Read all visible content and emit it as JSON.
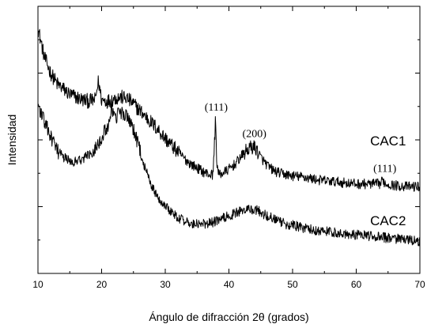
{
  "chart_data": {
    "type": "line",
    "title": "",
    "xlabel": "Ángulo de difracción 2θ (grados)",
    "ylabel": "Intensidad",
    "xlim": [
      10,
      70
    ],
    "ylim": [
      0,
      100
    ],
    "x_ticks": [
      10,
      20,
      30,
      40,
      50,
      60,
      70
    ],
    "y_tick_labels_shown": false,
    "grid": false,
    "line_color": "#000000",
    "series": [
      {
        "name": "CAC1",
        "x": [
          10,
          11,
          12,
          13,
          14,
          15,
          16,
          17,
          18,
          19,
          19.5,
          20,
          21,
          22,
          23,
          24,
          25,
          26,
          27,
          28,
          29,
          30,
          31,
          32,
          33,
          34,
          35,
          36,
          37,
          37.5,
          37.9,
          38.1,
          38.4,
          39,
          40,
          41,
          42,
          43,
          43.8,
          44.3,
          45,
          46,
          47,
          48,
          49,
          50,
          52,
          54,
          56,
          58,
          60,
          62,
          63.8,
          64.2,
          64.6,
          66,
          68,
          70
        ],
        "y": [
          92,
          81,
          75,
          71,
          69,
          67,
          66,
          65,
          64.5,
          65,
          72,
          65,
          64.5,
          65.5,
          66,
          65.5,
          63.5,
          61,
          58.5,
          56,
          53.5,
          50.5,
          48,
          45.5,
          43,
          41,
          39.5,
          38,
          37,
          37,
          58,
          41,
          37,
          37.5,
          39,
          41,
          44,
          46.5,
          47.5,
          46.5,
          43.5,
          40.5,
          38.5,
          37.5,
          37,
          36.5,
          36,
          35,
          34.5,
          34,
          33.5,
          33.5,
          33.5,
          35,
          33.5,
          33,
          32.5,
          32.5
        ]
      },
      {
        "name": "CAC2",
        "x": [
          10,
          11,
          12,
          13,
          14,
          15,
          16,
          17,
          18,
          19,
          20,
          21,
          21.5,
          22,
          22.5,
          23,
          23.5,
          24,
          24.5,
          25,
          26,
          27,
          28,
          29,
          30,
          31,
          32,
          33,
          34,
          35,
          36,
          37,
          38,
          39,
          40,
          41,
          42,
          43,
          44,
          45,
          46,
          47,
          48,
          49,
          50,
          52,
          54,
          56,
          58,
          60,
          62,
          64,
          66,
          68,
          70
        ],
        "y": [
          63,
          57,
          51,
          46,
          43.5,
          42,
          42,
          43,
          44.5,
          47,
          51,
          55,
          62,
          58,
          59,
          60.5,
          60,
          58,
          56,
          54,
          46,
          38,
          32,
          28,
          25.5,
          23,
          21,
          19.5,
          18.5,
          18.5,
          18.5,
          19,
          19.5,
          20.5,
          21.5,
          22.5,
          23.5,
          24,
          24,
          23,
          21.5,
          20.5,
          19.5,
          18.5,
          18,
          17,
          16,
          15.5,
          15,
          14.5,
          14,
          13.5,
          13,
          12.5,
          12
        ]
      }
    ],
    "annotations": [
      {
        "text": "(111)",
        "x": 38,
        "y": 61
      },
      {
        "text": "(200)",
        "x": 44,
        "y": 51
      },
      {
        "text": "(111)",
        "x": 64.5,
        "y": 38
      }
    ],
    "series_labels": [
      {
        "text": "CAC1",
        "x": 65,
        "y": 48
      },
      {
        "text": "CAC2",
        "x": 65,
        "y": 18
      }
    ]
  }
}
